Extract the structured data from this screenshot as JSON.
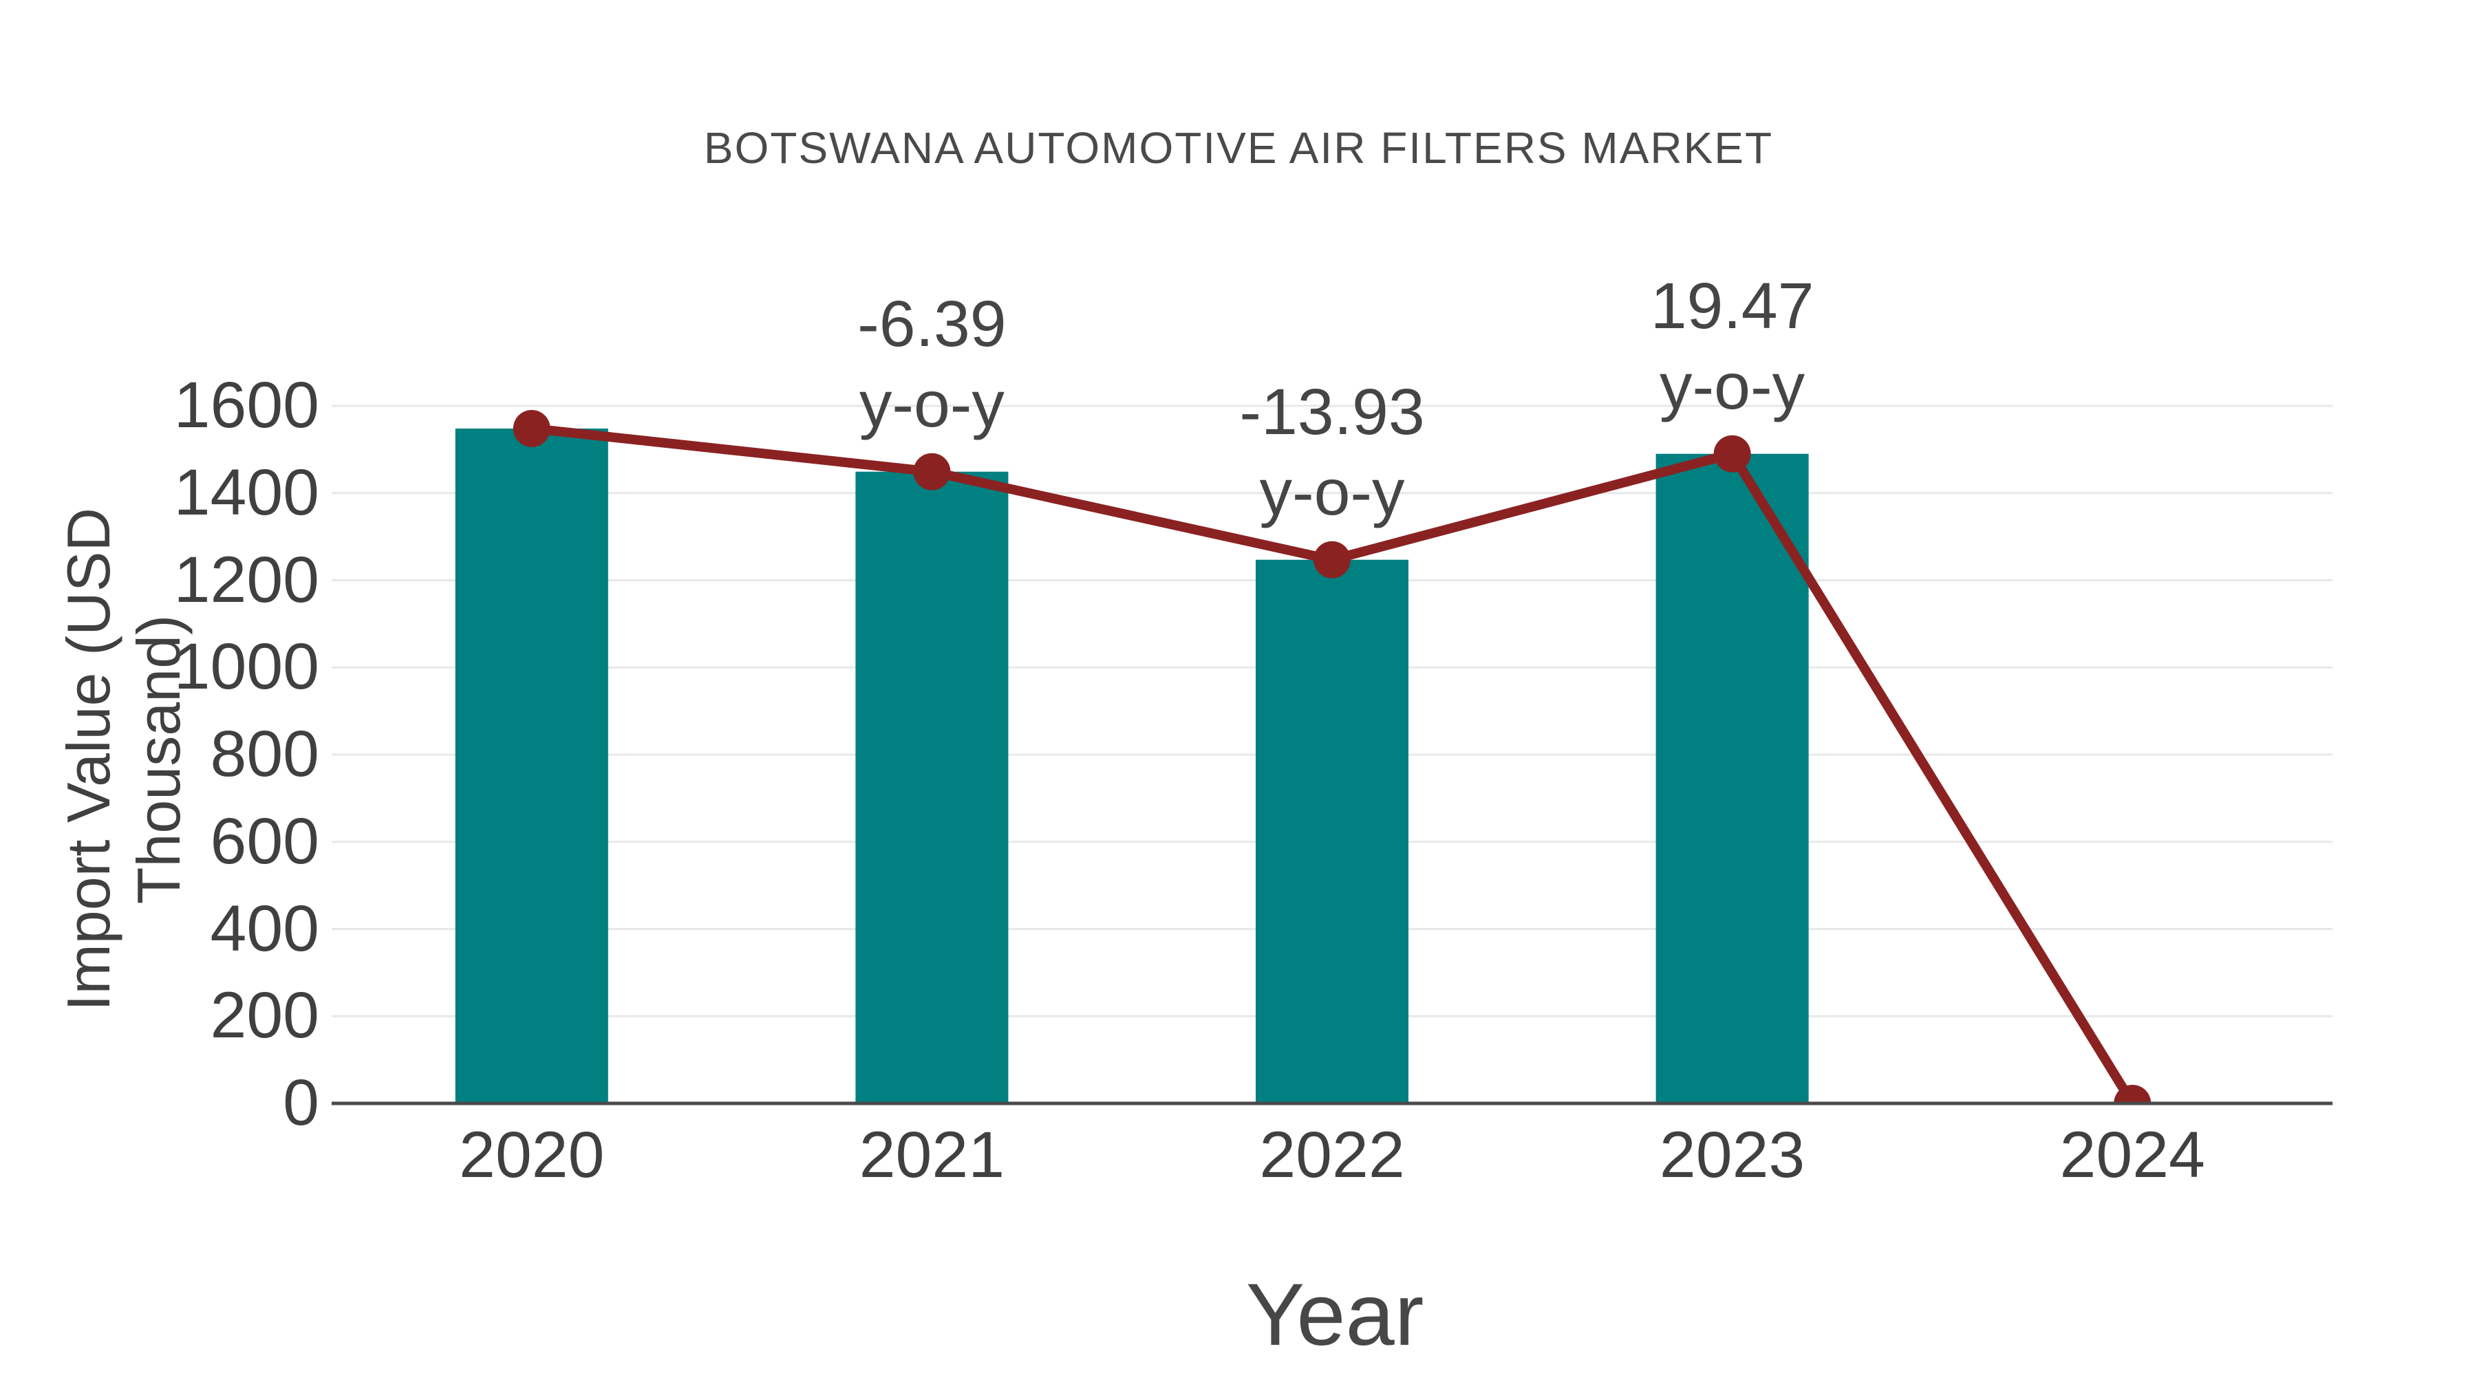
{
  "chart_data": {
    "type": "bar",
    "subtype": "bar-with-line-overlay",
    "title": "BOTSWANA AUTOMOTIVE AIR FILTERS MARKET",
    "xlabel": "Year",
    "ylabel": "Import Value (USD Thousand)",
    "categories": [
      "2020",
      "2021",
      "2022",
      "2023",
      "2024"
    ],
    "series": [
      {
        "name": "import-value-bars",
        "type": "bar",
        "values": [
          1548,
          1449,
          1247,
          1490,
          null
        ]
      },
      {
        "name": "import-value-line",
        "type": "line",
        "values": [
          1548,
          1449,
          1247,
          1490,
          0
        ]
      }
    ],
    "annotations": [
      {
        "category": "2021",
        "value_text": "-6.39",
        "sub_text": "y-o-y"
      },
      {
        "category": "2022",
        "value_text": "-13.93",
        "sub_text": "y-o-y"
      },
      {
        "category": "2023",
        "value_text": "19.47",
        "sub_text": "y-o-y"
      }
    ],
    "yticks": [
      0,
      200,
      400,
      600,
      800,
      1000,
      1200,
      1400,
      1600
    ],
    "ylim": [
      0,
      1600
    ],
    "grid": "horizontal-light-gray",
    "legend_position": "none",
    "colors": {
      "bar": "#008080",
      "line": "#8b2222",
      "marker": "#8b2222",
      "gridline": "#e8e8e8",
      "axis_line": "#4a4a4a",
      "tick_text": "#404040",
      "title_text": "#4a4a4a"
    }
  }
}
